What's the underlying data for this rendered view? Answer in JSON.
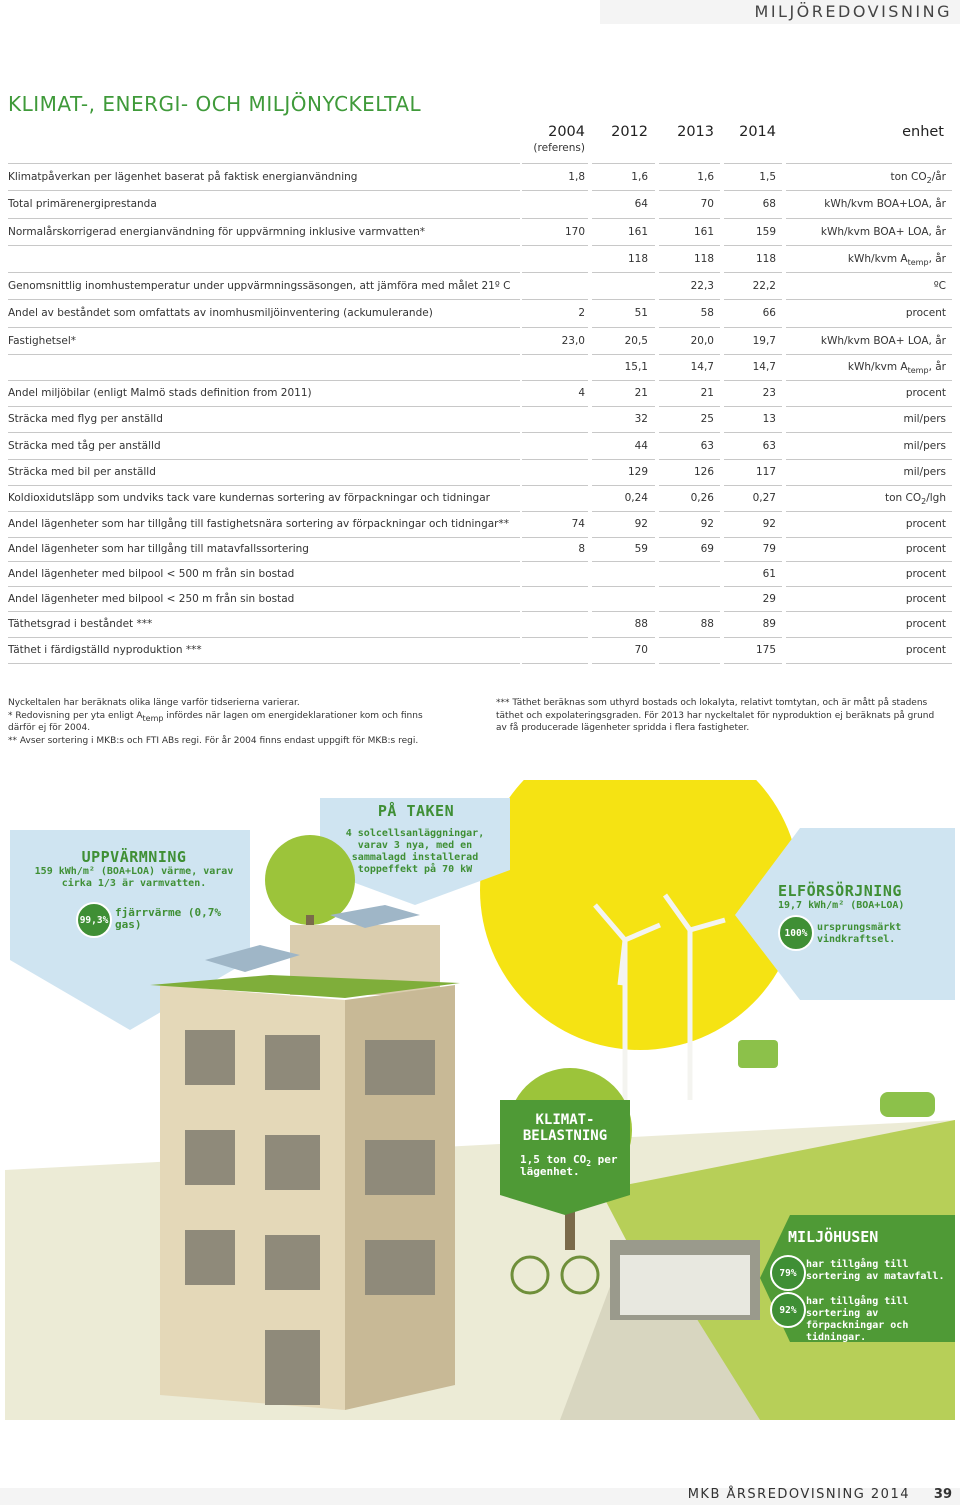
{
  "header": {
    "section": "MILJÖREDOVISNING"
  },
  "title": "KLIMAT-, ENERGI- OCH MILJÖNYCKELTAL",
  "table": {
    "columns": [
      {
        "year": "2004",
        "note": "(referens)"
      },
      {
        "year": "2012"
      },
      {
        "year": "2013"
      },
      {
        "year": "2014"
      }
    ],
    "unit_header": "enhet",
    "rows": [
      {
        "label": "Klimatpåverkan per lägenhet baserat på faktisk energianvändning",
        "values": [
          "1,8",
          "1,6",
          "1,6",
          "1,5"
        ],
        "unit": [
          "ton CO",
          "2",
          "/år"
        ]
      },
      {
        "label": "Total primärenergiprestanda",
        "values": [
          null,
          "64",
          "70",
          "68"
        ],
        "unit": [
          "kWh/kvm BOA+LOA, år"
        ]
      },
      {
        "label": "Normalårskorrigerad energianvändning för uppvärmning inklusive varmvatten*",
        "values": [
          "170",
          "161",
          "161",
          "159"
        ],
        "unit": [
          "kWh/kvm BOA+ LOA, år"
        ]
      },
      {
        "values": [
          null,
          "118",
          "118",
          "118"
        ],
        "unit": [
          "kWh/kvm A",
          "temp",
          ", år"
        ]
      },
      {
        "label": "Genomsnittlig inomhustemperatur under uppvärmningssäsongen, att jämföra med målet 21º C",
        "values": [
          null,
          null,
          "22,3",
          "22,2"
        ],
        "unit": [
          "ºC"
        ]
      },
      {
        "label": "Andel av beståndet som omfattats av inomhusmiljöinventering (ackumulerande)",
        "values": [
          "2",
          "51",
          "58",
          "66"
        ],
        "unit": [
          "procent"
        ]
      },
      {
        "label": "Fastighetsel*",
        "values": [
          "23,0",
          "20,5",
          "20,0",
          "19,7"
        ],
        "unit": [
          "kWh/kvm BOA+ LOA, år"
        ]
      },
      {
        "values": [
          null,
          "15,1",
          "14,7",
          "14,7"
        ],
        "unit": [
          "kWh/kvm A",
          "temp",
          ", år"
        ]
      },
      {
        "label": "Andel miljöbilar (enligt Malmö stads definition from 2011)",
        "values": [
          "4",
          "21",
          "21",
          "23"
        ],
        "unit": [
          "procent"
        ]
      },
      {
        "label": "Sträcka med flyg per anställd",
        "values": [
          null,
          "32",
          "25",
          "13"
        ],
        "unit": [
          "mil/pers"
        ]
      },
      {
        "label": "Sträcka med tåg per anställd",
        "values": [
          null,
          "44",
          "63",
          "63"
        ],
        "unit": [
          "mil/pers"
        ]
      },
      {
        "label": "Sträcka med bil per anställd",
        "values": [
          null,
          "129",
          "126",
          "117"
        ],
        "unit": [
          "mil/pers"
        ]
      },
      {
        "label": "Koldioxidutsläpp som undviks tack vare kundernas sortering av förpackningar och tidningar",
        "values": [
          null,
          "0,24",
          "0,26",
          "0,27"
        ],
        "unit": [
          "ton CO",
          "2",
          "/lgh"
        ]
      },
      {
        "label": "Andel lägenheter som har tillgång till fastighetsnära sortering av förpackningar och tidningar**",
        "values": [
          "74",
          "92",
          "92",
          "92"
        ],
        "unit": [
          "procent"
        ]
      },
      {
        "label": "Andel lägenheter som har tillgång till matavfallssortering",
        "values": [
          "8",
          "59",
          "69",
          "79"
        ],
        "unit": [
          "procent"
        ]
      },
      {
        "label": "Andel lägenheter med bilpool < 500 m från sin bostad",
        "values": [
          null,
          null,
          null,
          "61"
        ],
        "unit": [
          "procent"
        ]
      },
      {
        "label": "Andel lägenheter med bilpool < 250 m från sin bostad",
        "values": [
          null,
          null,
          null,
          "29"
        ],
        "unit": [
          "procent"
        ]
      },
      {
        "label": "Täthetsgrad  i beståndet ***",
        "values": [
          null,
          "88",
          "88",
          "89"
        ],
        "unit": [
          "procent"
        ]
      },
      {
        "label": "Täthet i färdigställd nyproduktion ***",
        "values": [
          null,
          "70",
          null,
          "175"
        ],
        "unit": [
          "procent"
        ]
      }
    ]
  },
  "footnotes": {
    "left": [
      [
        "Nyckeltalen har beräknats olika länge varför tidserierna varierar."
      ],
      [
        "* Redovisning per yta enligt A",
        "temp",
        " infördes när lagen om energideklarationer kom och finns därför ej för 2004."
      ],
      [
        "** Avser sortering i MKB:s och FTI ABs regi. För år 2004 finns endast uppgift för MKB:s regi."
      ]
    ],
    "right": [
      [
        "*** Täthet beräknas som uthyrd bostads och lokalyta, relativt tomtytan, och är mått på stadens täthet och expolateringsgraden. För 2013 har nyckeltalet för nyproduktion ej beräknats på grund av få producerade lägenheter spridda i flera fastigheter."
      ]
    ]
  },
  "infographic": {
    "roof": {
      "heading": "PÅ TAKEN",
      "text": "4 solcellsanläggningar, varav 3 nya, med en sammalagd installerad toppeffekt på 70 kW"
    },
    "heating": {
      "heading": "UPPVÄRMNING",
      "text": "159 kWh/m² (BOA+LOA) värme, varav cirka 1/3 är varmvatten.",
      "badge": "99,3%",
      "badge_text": "fjärrvärme (0,7% gas)"
    },
    "electricity": {
      "heading": "ELFÖRSÖRJNING",
      "text": "19,7 kWh/m² (BOA+LOA)",
      "badge": "100%",
      "badge_text": "ursprungsmärkt vindkraftsel."
    },
    "climate": {
      "heading": [
        "KLIMAT-",
        "BELASTNING"
      ],
      "text": [
        "1,5  ton CO",
        "2",
        " per lägenhet."
      ]
    },
    "waste": {
      "heading": "MILJÖHUSEN",
      "items": [
        {
          "badge": "79%",
          "text": "har tillgång till sortering av matavfall."
        },
        {
          "badge": "92%",
          "text": "har tillgång till sortering av förpackningar och tidningar."
        }
      ]
    }
  },
  "footer": {
    "publication": "MKB ÅRSREDOVISNING 2014",
    "page": "39"
  }
}
